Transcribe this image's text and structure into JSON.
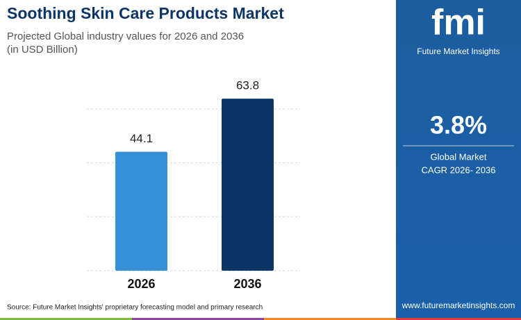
{
  "chart_data": {
    "type": "bar",
    "title": "Soothing Skin Care Products Market",
    "subtitle": [
      "Projected Global industry values for 2026 and 2036",
      "(in USD Billion)"
    ],
    "categories": [
      "2026",
      "2036"
    ],
    "values": [
      44.1,
      63.8
    ],
    "colors": [
      "#3690d5",
      "#0c3566"
    ],
    "ylim": [
      0,
      70
    ],
    "yticks": [
      0,
      20,
      40,
      60
    ],
    "grid": true
  },
  "source": "Source: Future Market Insights' proprietary forecasting model and primary research",
  "sidebar": {
    "logo": "fmi",
    "brand": "Future Market Insights",
    "cagr": "3.8%",
    "caption": [
      "Global Market",
      "CAGR 2026- 2036"
    ],
    "website": "www.futuremarketinsights.com"
  }
}
